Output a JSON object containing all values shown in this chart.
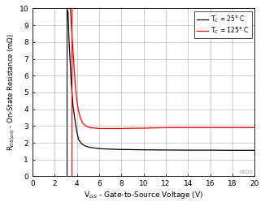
{
  "title": "",
  "xlabel": "V$_{GS}$ - Gate-to-Source Voltage (V)",
  "ylabel": "R$_{DS(on)}$ - On-State Resistance (mΩ)",
  "xlim": [
    0,
    20
  ],
  "ylim": [
    0,
    10
  ],
  "xticks": [
    0,
    2,
    4,
    6,
    8,
    10,
    12,
    14,
    16,
    18,
    20
  ],
  "yticks": [
    0,
    1,
    2,
    3,
    4,
    5,
    6,
    7,
    8,
    9,
    10
  ],
  "legend_labels": [
    "T$_C$ = 25° C",
    "T$_C$ = 125° C"
  ],
  "line_colors": [
    "black",
    "red"
  ],
  "watermark": "C0222",
  "curve_25C_vgs": [
    3.1,
    3.2,
    3.3,
    3.5,
    3.65,
    3.8,
    3.95,
    4.05,
    4.15,
    4.3,
    4.5,
    4.8,
    5.2,
    6.0,
    7.0,
    8.0,
    10.0,
    12.0,
    14.0,
    16.0,
    18.0,
    20.0
  ],
  "curve_25C_rds": [
    10.0,
    9.8,
    8.0,
    5.5,
    4.2,
    3.5,
    2.8,
    2.5,
    2.2,
    2.05,
    1.9,
    1.8,
    1.72,
    1.65,
    1.62,
    1.6,
    1.58,
    1.57,
    1.56,
    1.56,
    1.55,
    1.55
  ],
  "curve_125C_vgs": [
    3.4,
    3.55,
    3.7,
    3.85,
    4.0,
    4.15,
    4.3,
    4.5,
    4.8,
    5.2,
    6.0,
    7.0,
    8.0,
    10.0,
    12.0,
    14.0,
    16.0,
    18.0,
    20.0
  ],
  "curve_125C_rds": [
    10.0,
    8.5,
    7.0,
    5.5,
    4.5,
    3.9,
    3.5,
    3.2,
    3.0,
    2.9,
    2.85,
    2.85,
    2.85,
    2.87,
    2.9,
    2.9,
    2.9,
    2.9,
    2.9
  ],
  "bg_color": "#ffffff",
  "grid_color": "#aaaaaa",
  "fig_width": 3.26,
  "fig_height": 2.54,
  "dpi": 100
}
